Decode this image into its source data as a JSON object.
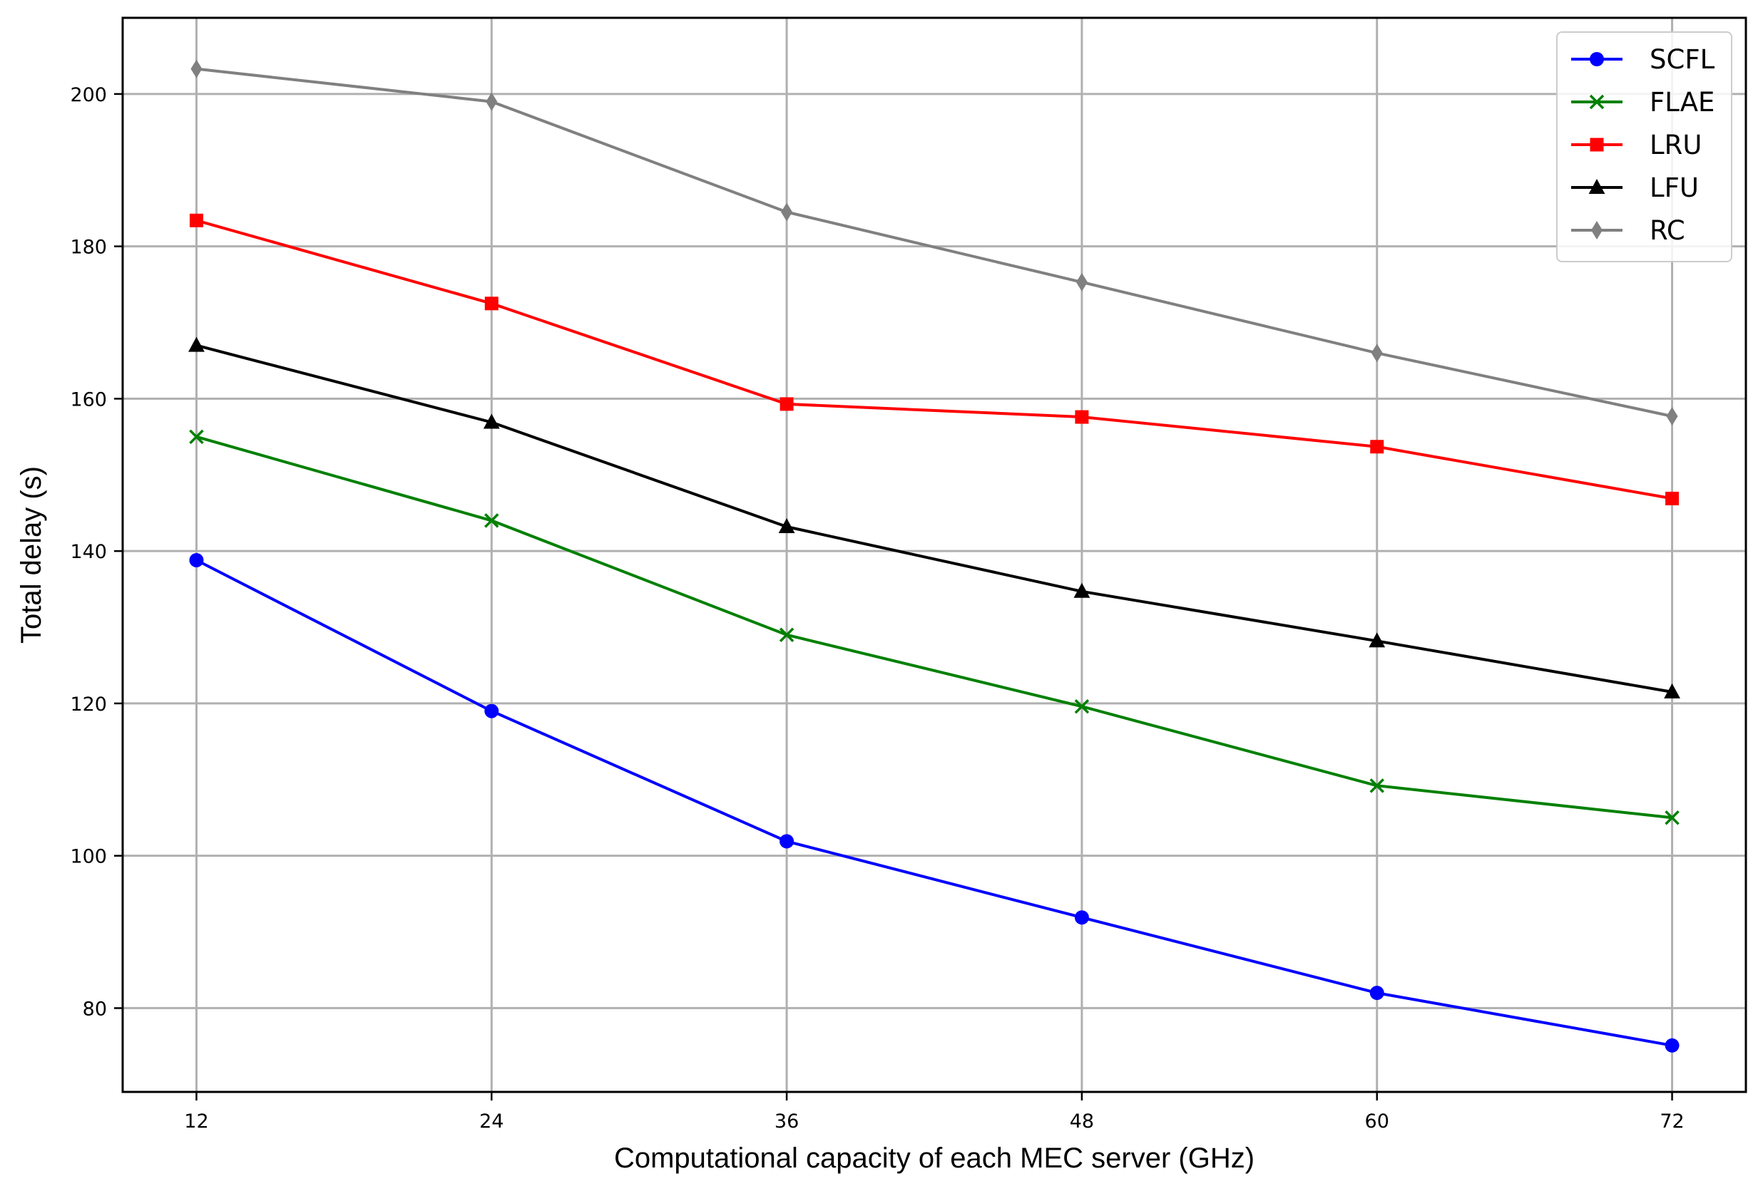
{
  "chart_data": {
    "type": "line",
    "title": "",
    "xlabel": "Computational capacity of each MEC server (GHz)",
    "ylabel": "Total delay (s)",
    "x": [
      12,
      24,
      36,
      48,
      60,
      72
    ],
    "xticks": [
      "12",
      "24",
      "36",
      "48",
      "60",
      "72"
    ],
    "yticks": [
      "80",
      "100",
      "120",
      "140",
      "160",
      "180",
      "200"
    ],
    "ytick_values": [
      80,
      100,
      120,
      140,
      160,
      180,
      200
    ],
    "xlim": [
      9,
      75
    ],
    "ylim": [
      69,
      210
    ],
    "grid": true,
    "legend_position": "top-right",
    "series": [
      {
        "name": "SCFL",
        "color": "#0000ff",
        "marker": "circle",
        "values": [
          138.8,
          119.0,
          101.9,
          91.9,
          82.0,
          75.1
        ]
      },
      {
        "name": "FLAE",
        "color": "#008000",
        "marker": "x",
        "values": [
          155.0,
          144.0,
          129.0,
          119.6,
          109.2,
          105.0
        ]
      },
      {
        "name": "LRU",
        "color": "#ff0000",
        "marker": "square",
        "values": [
          183.4,
          172.5,
          159.3,
          157.6,
          153.7,
          146.9
        ]
      },
      {
        "name": "LFU",
        "color": "#000000",
        "marker": "triangle",
        "values": [
          167.0,
          156.9,
          143.2,
          134.7,
          128.2,
          121.5
        ]
      },
      {
        "name": "RC",
        "color": "#808080",
        "marker": "thin-diamond",
        "values": [
          203.3,
          199.0,
          184.5,
          175.3,
          166.0,
          157.7
        ]
      }
    ]
  }
}
